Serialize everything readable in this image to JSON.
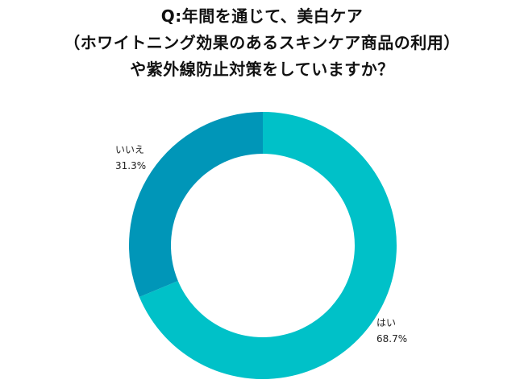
{
  "title_lines": [
    "Q:年間を通じて、美白ケア",
    "（ホワイトニング効果のあるスキンケア商品の利用）",
    "や紫外線防止対策をしていますか？"
  ],
  "chart_data": {
    "type": "pie",
    "style": "donut",
    "title": "Q:年間を通じて、美白ケア（ホワイトニング効果のあるスキンケア商品の利用）や紫外線防止対策をしていますか？",
    "slices": [
      {
        "label": "はい",
        "value": 68.7,
        "value_label": "68.7%",
        "color": "#00c1c8"
      },
      {
        "label": "いいえ",
        "value": 31.3,
        "value_label": "31.3%",
        "color": "#0096b8"
      }
    ],
    "legend": "none"
  }
}
